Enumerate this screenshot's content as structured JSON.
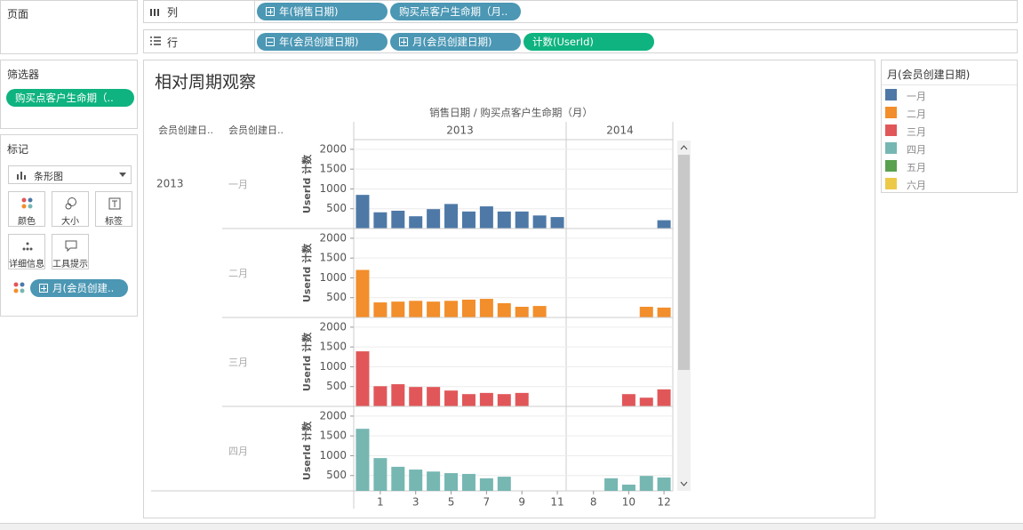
{
  "pages_card": {
    "title": "页面"
  },
  "columns_shelf": {
    "label": "列",
    "pills": [
      "年(销售日期)",
      "购买点客户生命期（月.."
    ]
  },
  "rows_shelf": {
    "label": "行",
    "pills": [
      "年(会员创建日期)",
      "月(会员创建日期)",
      "计数(UserId)"
    ]
  },
  "filters_card": {
    "title": "筛选器",
    "pills": [
      "购买点客户生命期（.."
    ]
  },
  "marks_card": {
    "title": "标记",
    "mark_type": "条形图",
    "buttons": [
      "颜色",
      "大小",
      "标签",
      "详细信息",
      "工具提示"
    ],
    "pills": [
      "月(会员创建.."
    ]
  },
  "chart_data": {
    "type": "bar",
    "title": "相对周期观察",
    "column_title": "销售日期 / 购买点客户生命期（月）",
    "row_header_titles": [
      "会员创建日..",
      "会员创建日.."
    ],
    "row_year": "2013",
    "y_label": "UserId 计数",
    "ylim": [
      0,
      2200
    ],
    "yticks": [
      500,
      1000,
      1500,
      2000
    ],
    "grid": true,
    "columns": [
      {
        "name": "2013",
        "xlim": [
          -0.5,
          11.5
        ],
        "xticks": [
          1,
          3,
          5,
          7,
          9,
          11
        ]
      },
      {
        "name": "2014",
        "xlim": [
          6.5,
          12.5
        ],
        "xticks": [
          8,
          10,
          12
        ]
      }
    ],
    "legend": {
      "title": "月(会员创建日期)"
    },
    "series": [
      {
        "name": "一月",
        "color": "#4e79a7",
        "panes": [
          {
            "x": [
              0,
              1,
              2,
              3,
              4,
              5,
              6,
              7,
              8,
              9,
              10,
              11
            ],
            "values": [
              850,
              410,
              450,
              310,
              490,
              620,
              430,
              560,
              430,
              430,
              330,
              290
            ]
          },
          {
            "x": [
              12
            ],
            "values": [
              210
            ]
          }
        ]
      },
      {
        "name": "二月",
        "color": "#f28e2b",
        "panes": [
          {
            "x": [
              0,
              1,
              2,
              3,
              4,
              5,
              6,
              7,
              8,
              9,
              10
            ],
            "values": [
              1200,
              380,
              400,
              420,
              400,
              420,
              450,
              470,
              360,
              270,
              290
            ]
          },
          {
            "x": [
              11,
              12
            ],
            "values": [
              270,
              250
            ]
          }
        ]
      },
      {
        "name": "三月",
        "color": "#e15759",
        "panes": [
          {
            "x": [
              0,
              1,
              2,
              3,
              4,
              5,
              6,
              7,
              8,
              9
            ],
            "values": [
              1390,
              510,
              560,
              490,
              490,
              400,
              310,
              340,
              310,
              340
            ]
          },
          {
            "x": [
              10,
              11,
              12
            ],
            "values": [
              310,
              220,
              430
            ]
          }
        ]
      },
      {
        "name": "四月",
        "color": "#76b7b2",
        "panes": [
          {
            "x": [
              0,
              1,
              2,
              3,
              4,
              5,
              6,
              7,
              8
            ],
            "values": [
              1680,
              940,
              720,
              650,
              600,
              560,
              540,
              430,
              470
            ]
          },
          {
            "x": [
              9,
              10,
              11,
              12
            ],
            "values": [
              430,
              270,
              490,
              450
            ]
          }
        ]
      },
      {
        "name": "五月",
        "color": "#59a14f"
      },
      {
        "name": "六月",
        "color": "#edc948"
      }
    ]
  }
}
